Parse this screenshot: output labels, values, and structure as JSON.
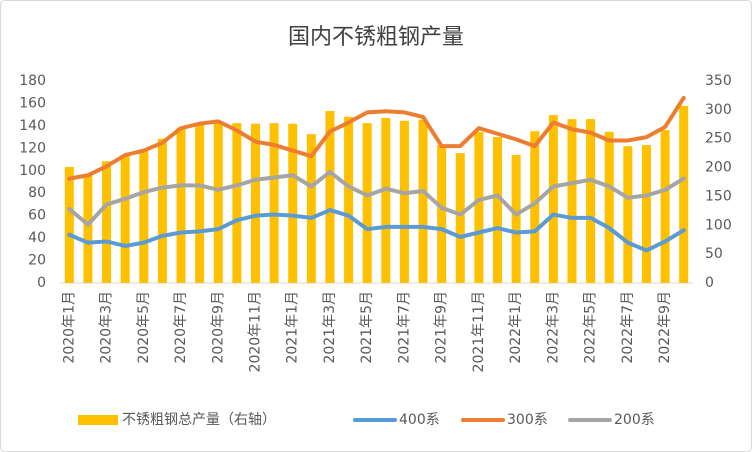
{
  "chart_data": {
    "type": "bar",
    "title": "国内不锈粗钢产量",
    "categories": [
      "2020年1月",
      null,
      "2020年3月",
      null,
      "2020年5月",
      null,
      "2020年7月",
      null,
      "2020年9月",
      null,
      "2020年11月",
      null,
      "2021年1月",
      null,
      "2021年3月",
      null,
      "2021年5月",
      null,
      "2021年7月",
      null,
      "2021年9月",
      null,
      "2021年11月",
      null,
      "2022年1月",
      null,
      "2022年3月",
      null,
      "2022年5月",
      null,
      "2022年7月",
      null,
      "2022年9月",
      null
    ],
    "series": [
      {
        "name": "不锈粗钢总产量（右轴）",
        "type": "bar",
        "axis": "y2",
        "color": "#FFC000",
        "values": [
          201,
          187,
          211,
          222,
          230,
          250,
          269,
          276,
          277,
          277,
          276,
          277,
          276,
          258,
          298,
          288,
          277,
          286,
          281,
          283,
          239,
          225,
          262,
          253,
          222,
          263,
          291,
          284,
          284,
          262,
          237,
          239,
          265,
          307
        ]
      },
      {
        "name": "400系",
        "type": "line",
        "color": "#5B9BD5",
        "values": [
          43,
          36,
          37,
          33,
          36,
          42,
          45,
          46,
          48,
          56,
          60,
          61,
          60,
          58,
          65,
          60,
          48,
          50,
          50,
          50,
          48,
          41,
          45,
          49,
          45,
          46,
          61,
          58,
          58,
          49,
          36,
          29,
          37,
          47
        ]
      },
      {
        "name": "300系",
        "type": "line",
        "color": "#ED7D31",
        "values": [
          93,
          96,
          104,
          114,
          118,
          125,
          138,
          142,
          144,
          136,
          126,
          123,
          118,
          113,
          135,
          143,
          152,
          153,
          152,
          148,
          122,
          122,
          138,
          133,
          128,
          122,
          143,
          137,
          134,
          127,
          127,
          130,
          139,
          165
        ]
      },
      {
        "name": "200系",
        "type": "line",
        "color": "#A5A5A5",
        "values": [
          66,
          52,
          70,
          75,
          81,
          85,
          87,
          87,
          83,
          87,
          92,
          94,
          96,
          86,
          99,
          86,
          78,
          84,
          80,
          82,
          67,
          61,
          74,
          78,
          61,
          71,
          86,
          89,
          92,
          86,
          76,
          78,
          83,
          93
        ]
      }
    ],
    "ylim": [
      0,
      180
    ],
    "yticks": [
      0,
      20,
      40,
      60,
      80,
      100,
      120,
      140,
      160,
      180
    ],
    "y2lim": [
      0,
      350
    ],
    "y2ticks": [
      0,
      50,
      100,
      150,
      200,
      250,
      300,
      350
    ],
    "legend": "bottom"
  }
}
